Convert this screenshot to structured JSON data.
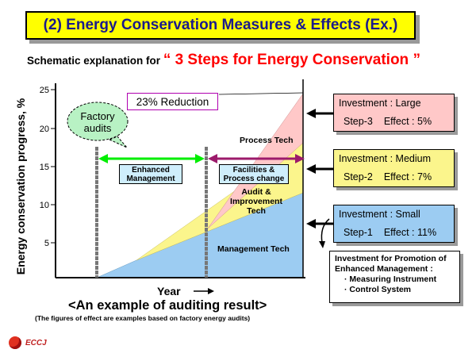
{
  "title": "(2) Energy Conservation Measures & Effects (Ex.)",
  "subtitle": {
    "prefix": "Schematic explanation for",
    "highlight": "“ 3 Steps for Energy Conservation ”"
  },
  "y_axis_label": "Energy conservation progress, %",
  "y_ticks": [
    "25",
    "20",
    "15",
    "10",
    "5"
  ],
  "x_axis_label": "Year",
  "callout": "Factory audits",
  "reduction_label": "23% Reduction",
  "phase_labels": {
    "enhanced": "Enhanced Management",
    "facilities": "Facilities & Process change"
  },
  "band_labels": {
    "process": "Process Tech",
    "audit": "Audit & Improvement Tech",
    "management": "Management Tech"
  },
  "steps": [
    {
      "investment": "Investment : Large",
      "step": "Step-3",
      "effect": "Effect : 5%",
      "color": "#ffc8c8"
    },
    {
      "investment": "Investment : Medium",
      "step": "Step-2",
      "effect": "Effect : 7%",
      "color": "#fbf58c"
    },
    {
      "investment": "Investment : Small",
      "step": "Step-1",
      "effect": "Effect : 11%",
      "color": "#9cccf2"
    }
  ],
  "promotion": {
    "heading": "Investment for Promotion of Enhanced Management :",
    "items": [
      "Measuring Instrument",
      "Control System"
    ]
  },
  "example_caption": "<An example of auditing result>",
  "note": "(The figures of effect are examples based on factory energy audits)",
  "logo": "ECCJ",
  "colors": {
    "management": "#9cccf2",
    "audit": "#fbf58c",
    "process": "#ffc8c8",
    "enhanced_arrow": "#00ee00",
    "facilities_arrow": "#9c1a6b",
    "title_bg": "#ffff00",
    "title_text": "#1a1a8c"
  }
}
